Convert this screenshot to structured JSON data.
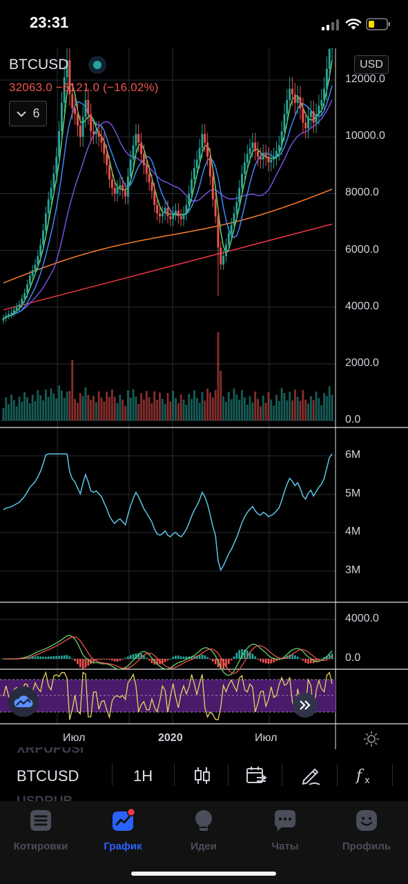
{
  "status_bar": {
    "time": "23:31"
  },
  "header": {
    "symbol": "BTCUSD",
    "change": "32063.0  −6121.0 (−16.02%)",
    "indicators_count": "6",
    "currency": "USD"
  },
  "price_axis": [
    "12000.0",
    "10000.0",
    "8000.0",
    "6000.0",
    "4000.0",
    "2000.0",
    "0.0"
  ],
  "obv_axis": [
    "6M",
    "5M",
    "4M",
    "3M"
  ],
  "macd_axis": [
    "4000.0",
    "0.0"
  ],
  "time_axis": [
    "Июл",
    "2020",
    "Июл"
  ],
  "ghost_rows": {
    "above": "XRPUPUSI",
    "below": "USDRUB"
  },
  "toolbar": {
    "symbol": "BTCUSD",
    "interval": "1H"
  },
  "tabs": [
    {
      "label": "Котировки",
      "icon": "quotes-icon"
    },
    {
      "label": "График",
      "icon": "chart-icon"
    },
    {
      "label": "Идеи",
      "icon": "ideas-icon"
    },
    {
      "label": "Чаты",
      "icon": "chats-icon"
    },
    {
      "label": "Профиль",
      "icon": "profile-icon"
    }
  ],
  "colors": {
    "up": "#26a69a",
    "down": "#ef5350",
    "accent": "#2962ff",
    "obv": "#5fc7e8",
    "rsi": "#e8d561",
    "rsi_band": "#4a1a6b"
  },
  "chart_data": {
    "type": "candlestick",
    "symbol": "BTCUSD",
    "x_labels": [
      "Июл",
      "2020",
      "Июл"
    ],
    "price_ylim": [
      0,
      13000
    ],
    "price_ticks": [
      0,
      2000,
      4000,
      6000,
      8000,
      10000,
      12000
    ],
    "closes": [
      3600,
      3700,
      3750,
      3800,
      3900,
      4000,
      4100,
      4300,
      4500,
      4800,
      5100,
      5300,
      5500,
      5800,
      6200,
      6700,
      7300,
      7800,
      8200,
      8700,
      9300,
      10200,
      11200,
      12100,
      12700,
      11500,
      11000,
      10800,
      10400,
      10000,
      10700,
      11300,
      10800,
      10200,
      10100,
      10200,
      10000,
      9800,
      9400,
      9000,
      8500,
      8200,
      8000,
      8200,
      8300,
      8100,
      7900,
      8600,
      9200,
      9700,
      10100,
      9800,
      9400,
      9000,
      8700,
      8400,
      8100,
      7600,
      7300,
      7200,
      7300,
      7500,
      7200,
      7100,
      7300,
      7400,
      7200,
      7100,
      7300,
      7600,
      8000,
      8500,
      8900,
      9200,
      9600,
      10100,
      9800,
      9300,
      8600,
      7800,
      7200,
      6100,
      5500,
      5800,
      6200,
      6600,
      6900,
      7300,
      7700,
      8200,
      8700,
      9100,
      9400,
      9600,
      9800,
      9500,
      9300,
      9200,
      9400,
      9300,
      9100,
      9200,
      9300,
      9500,
      9700,
      10200,
      10800,
      11300,
      11700,
      11500,
      11200,
      11400,
      11000,
      10500,
      10300,
      10700,
      10900,
      10500,
      10800,
      11100,
      11300,
      11700,
      12400,
      13100,
      13600
    ]
  }
}
